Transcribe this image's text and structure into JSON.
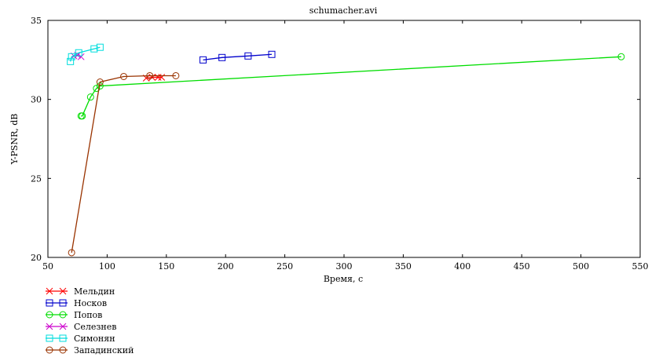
{
  "chart_data": {
    "type": "line",
    "title": "schumacher.avi",
    "xlabel": "Время, с",
    "ylabel": "Y-PSNR, dB",
    "xlim": [
      50,
      550
    ],
    "ylim": [
      20,
      35
    ],
    "xticks": [
      50,
      100,
      150,
      200,
      250,
      300,
      350,
      400,
      450,
      500,
      550
    ],
    "yticks": [
      20,
      25,
      30,
      35
    ],
    "grid": false,
    "legend_position": "bottom-left, below plot",
    "series": [
      {
        "name": "Мельдин",
        "color": "#ff0000",
        "marker": "x",
        "points": [
          [
            133,
            31.35
          ],
          [
            138,
            31.4
          ],
          [
            143,
            31.4
          ],
          [
            146,
            31.4
          ]
        ]
      },
      {
        "name": "Носков",
        "color": "#0000cc",
        "marker": "square",
        "points": [
          [
            181,
            32.5
          ],
          [
            197,
            32.65
          ],
          [
            219,
            32.75
          ],
          [
            239,
            32.85
          ]
        ]
      },
      {
        "name": "Попов",
        "color": "#00dd00",
        "marker": "circle",
        "points": [
          [
            78,
            28.95
          ],
          [
            79,
            28.95
          ],
          [
            86,
            30.15
          ],
          [
            91,
            30.7
          ],
          [
            94,
            30.85
          ],
          [
            534,
            32.7
          ]
        ]
      },
      {
        "name": "Селезнев",
        "color": "#cc00cc",
        "marker": "x",
        "points": [
          [
            72,
            32.75
          ],
          [
            75,
            32.8
          ],
          [
            78,
            32.7
          ]
        ]
      },
      {
        "name": "Симонян",
        "color": "#00dddd",
        "marker": "square",
        "points": [
          [
            69,
            32.4
          ],
          [
            70,
            32.7
          ],
          [
            76,
            32.95
          ],
          [
            89,
            33.2
          ],
          [
            94,
            33.3
          ]
        ]
      },
      {
        "name": "Западинский",
        "color": "#993300",
        "marker": "circle",
        "points": [
          [
            70,
            20.3
          ],
          [
            94,
            31.1
          ],
          [
            114,
            31.45
          ],
          [
            136,
            31.5
          ],
          [
            158,
            31.5
          ]
        ]
      }
    ]
  }
}
